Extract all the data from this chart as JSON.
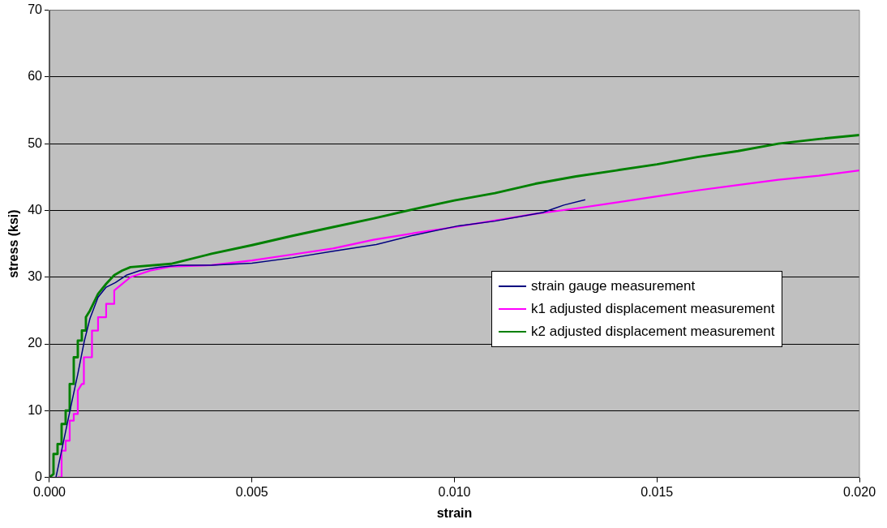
{
  "chart_data": {
    "type": "line",
    "xlabel": "strain",
    "ylabel": "stress (ksi)",
    "xlim": [
      0,
      0.02
    ],
    "xticks": [
      {
        "value": 0,
        "label": "0.000"
      },
      {
        "value": 0.005,
        "label": "0.005"
      },
      {
        "value": 0.01,
        "label": "0.010"
      },
      {
        "value": 0.015,
        "label": "0.015"
      },
      {
        "value": 0.02,
        "label": "0.020"
      }
    ],
    "ylim": [
      0,
      70
    ],
    "yticks": [
      0,
      10,
      20,
      30,
      40,
      50,
      60,
      70
    ],
    "grid": "y",
    "legend": "center right",
    "marker": "none",
    "line_style": "solid",
    "series": [
      {
        "name": "strain gauge measurement",
        "color": "#000080",
        "x": [
          0.00016,
          0.0003,
          0.0005,
          0.0007,
          0.00086,
          0.001,
          0.0012,
          0.0014,
          0.00163,
          0.0019,
          0.00224,
          0.0027,
          0.0032,
          0.004,
          0.005,
          0.006,
          0.007,
          0.00807,
          0.009,
          0.0101,
          0.011,
          0.01218,
          0.0127,
          0.01323
        ],
        "values": [
          0,
          4,
          9.8,
          15.5,
          20.4,
          23.8,
          27,
          28.5,
          29.2,
          30.3,
          31,
          31.5,
          31.8,
          31.8,
          32.1,
          32.9,
          33.9,
          34.9,
          36.3,
          37.7,
          38.4,
          39.7,
          40.8,
          41.6
        ]
      },
      {
        "name": "k1 adjusted displacement measurement",
        "color": "#ff00ff",
        "x": [
          0.0002,
          0.0003,
          0.0003,
          0.0004,
          0.0004,
          0.0005,
          0.0005,
          0.0006,
          0.0006,
          0.0007,
          0.0007,
          0.0008,
          0.00085,
          0.00085,
          0.00105,
          0.00105,
          0.0012,
          0.0012,
          0.0014,
          0.0014,
          0.0016,
          0.0016,
          0.0018,
          0.002,
          0.0025,
          0.003,
          0.004,
          0.005,
          0.006,
          0.007,
          0.008,
          0.009,
          0.01,
          0.011,
          0.012,
          0.013,
          0.014,
          0.015,
          0.016,
          0.017,
          0.018,
          0.019,
          0.02
        ],
        "values": [
          0,
          0,
          4,
          4,
          5.5,
          5.5,
          8.5,
          8.5,
          9.5,
          9.5,
          13,
          14,
          14,
          18,
          18,
          22,
          22,
          24,
          24,
          26,
          26,
          28,
          29,
          30,
          31,
          31.6,
          31.8,
          32.5,
          33.4,
          34.3,
          35.6,
          36.6,
          37.5,
          38.5,
          39.5,
          40.3,
          41.2,
          42.1,
          43,
          43.8,
          44.6,
          45.2,
          46
        ]
      },
      {
        "name": "k2 adjusted displacement measurement",
        "color": "#008000",
        "x": [
          0,
          0.0001,
          0.0001,
          0.0002,
          0.0002,
          0.0003,
          0.0003,
          0.0004,
          0.0004,
          0.0005,
          0.0005,
          0.0006,
          0.0006,
          0.0007,
          0.0007,
          0.0008,
          0.0008,
          0.0009,
          0.0009,
          0.001,
          0.0012,
          0.0014,
          0.0016,
          0.0018,
          0.002,
          0.003,
          0.004,
          0.005,
          0.006,
          0.007,
          0.008,
          0.009,
          0.01,
          0.011,
          0.012,
          0.013,
          0.014,
          0.015,
          0.016,
          0.017,
          0.018,
          0.019,
          0.02
        ],
        "values": [
          0,
          0.5,
          3.5,
          3.5,
          5,
          5,
          8,
          8,
          10,
          10,
          14,
          14,
          18,
          18,
          20.5,
          20.5,
          22,
          22,
          24,
          25,
          27.5,
          29,
          30.3,
          31,
          31.5,
          32,
          33.5,
          34.8,
          36.2,
          37.5,
          38.8,
          40.2,
          41.5,
          42.6,
          44,
          45.1,
          46,
          46.9,
          48,
          48.9,
          50,
          50.7,
          51.3
        ]
      }
    ]
  }
}
